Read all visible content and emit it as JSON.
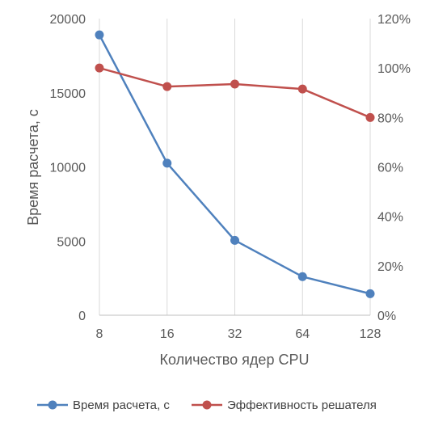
{
  "chart_data": {
    "type": "line",
    "categories": [
      "8",
      "16",
      "32",
      "64",
      "128"
    ],
    "xlabel": "Количество ядер CPU",
    "ylabel": "Время расчета, с",
    "ylim": [
      0,
      20000
    ],
    "yticks": [
      "0",
      "5000",
      "10000",
      "15000",
      "20000"
    ],
    "y2lim": [
      0,
      120
    ],
    "y2ticks": [
      "0%",
      "20%",
      "40%",
      "60%",
      "80%",
      "100%",
      "120%"
    ],
    "grid": "vertical",
    "legend_position": "bottom",
    "series": [
      {
        "name": "Время расчета, с",
        "axis": "left",
        "color": "#4F81BD",
        "values": [
          18900,
          10250,
          5050,
          2600,
          1450
        ]
      },
      {
        "name": "Эффективность решателя",
        "axis": "right",
        "color": "#C0504D",
        "values": [
          100,
          92.5,
          93.5,
          91.5,
          80
        ]
      }
    ]
  }
}
